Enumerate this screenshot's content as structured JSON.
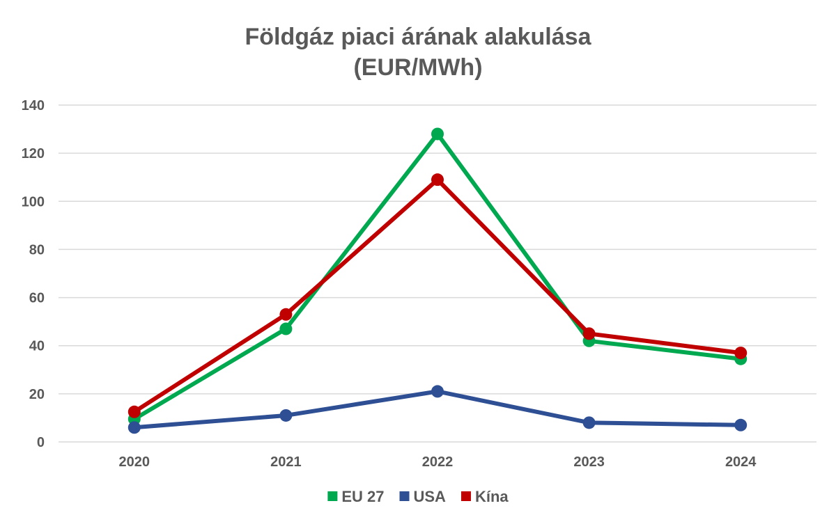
{
  "chart_data": {
    "type": "line",
    "title": [
      "Földgáz piaci árának alakulása",
      "(EUR/MWh)"
    ],
    "categories": [
      "2020",
      "2021",
      "2022",
      "2023",
      "2024"
    ],
    "ylim": [
      0,
      140
    ],
    "yticks": [
      0,
      20,
      40,
      60,
      80,
      100,
      120,
      140
    ],
    "grid": true,
    "legend_position": "bottom",
    "series": [
      {
        "name": "EU 27",
        "color": "#00a84f",
        "values": [
          9.5,
          47,
          128,
          42,
          34.5
        ]
      },
      {
        "name": "USA",
        "color": "#2e4f94",
        "values": [
          6,
          11,
          21,
          8,
          7
        ]
      },
      {
        "name": "Kína",
        "color": "#c00000",
        "values": [
          12.5,
          53,
          109,
          45,
          37
        ]
      }
    ]
  }
}
